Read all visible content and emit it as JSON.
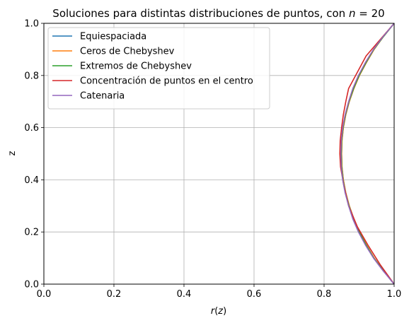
{
  "chart_data": {
    "type": "line",
    "title": "Soluciones para distintas distribuciones de puntos, con n = 20",
    "title_prefix": "Soluciones para distintas distribuciones de puntos, con ",
    "title_var": "n",
    "title_suffix": " = 20",
    "xlabel": "r(z)",
    "xlabel_var": "r",
    "xlabel_open": "(",
    "xlabel_arg": "z",
    "xlabel_close": ")",
    "ylabel": "z",
    "xlim": [
      0,
      1
    ],
    "ylim": [
      0,
      1
    ],
    "xticks": [
      "0.0",
      "0.2",
      "0.4",
      "0.6",
      "0.8",
      "1.0"
    ],
    "yticks": [
      "0.0",
      "0.2",
      "0.4",
      "0.6",
      "0.8",
      "1.0"
    ],
    "grid": true,
    "legend_position": "top-left",
    "series": [
      {
        "name": "Equiespaciada",
        "color": "#1f77b4",
        "points": [
          [
            1.0,
            0.0
          ],
          [
            0.97,
            0.05
          ],
          [
            0.942,
            0.1
          ],
          [
            0.92,
            0.15
          ],
          [
            0.9,
            0.2
          ],
          [
            0.885,
            0.25
          ],
          [
            0.872,
            0.3
          ],
          [
            0.862,
            0.35
          ],
          [
            0.855,
            0.4
          ],
          [
            0.851,
            0.45
          ],
          [
            0.85,
            0.5
          ],
          [
            0.851,
            0.55
          ],
          [
            0.855,
            0.6
          ],
          [
            0.862,
            0.65
          ],
          [
            0.872,
            0.7
          ],
          [
            0.885,
            0.75
          ],
          [
            0.9,
            0.8
          ],
          [
            0.92,
            0.85
          ],
          [
            0.942,
            0.9
          ],
          [
            0.97,
            0.95
          ],
          [
            1.0,
            1.0
          ]
        ]
      },
      {
        "name": "Ceros de Chebyshev",
        "color": "#ff7f0e",
        "points": [
          [
            1.0,
            0.0
          ],
          [
            0.97,
            0.05
          ],
          [
            0.943,
            0.1
          ],
          [
            0.921,
            0.15
          ],
          [
            0.901,
            0.2
          ],
          [
            0.885,
            0.25
          ],
          [
            0.872,
            0.3
          ],
          [
            0.862,
            0.35
          ],
          [
            0.855,
            0.4
          ],
          [
            0.851,
            0.45
          ],
          [
            0.85,
            0.5
          ],
          [
            0.851,
            0.55
          ],
          [
            0.855,
            0.6
          ],
          [
            0.862,
            0.65
          ],
          [
            0.872,
            0.7
          ],
          [
            0.885,
            0.75
          ],
          [
            0.901,
            0.8
          ],
          [
            0.921,
            0.85
          ],
          [
            0.943,
            0.9
          ],
          [
            0.97,
            0.95
          ],
          [
            1.0,
            1.0
          ]
        ]
      },
      {
        "name": "Extremos de Chebyshev",
        "color": "#2ca02c",
        "points": [
          [
            1.0,
            0.0
          ],
          [
            0.97,
            0.05
          ],
          [
            0.942,
            0.1
          ],
          [
            0.92,
            0.15
          ],
          [
            0.9,
            0.2
          ],
          [
            0.884,
            0.25
          ],
          [
            0.871,
            0.3
          ],
          [
            0.861,
            0.35
          ],
          [
            0.854,
            0.4
          ],
          [
            0.85,
            0.45
          ],
          [
            0.849,
            0.5
          ],
          [
            0.85,
            0.55
          ],
          [
            0.854,
            0.6
          ],
          [
            0.861,
            0.65
          ],
          [
            0.871,
            0.7
          ],
          [
            0.884,
            0.75
          ],
          [
            0.9,
            0.8
          ],
          [
            0.92,
            0.85
          ],
          [
            0.942,
            0.9
          ],
          [
            0.97,
            0.95
          ],
          [
            1.0,
            1.0
          ]
        ]
      },
      {
        "name": "Concentración de puntos en el centro",
        "color": "#d62728",
        "points": [
          [
            1.0,
            0.0
          ],
          [
            0.96,
            0.075
          ],
          [
            0.925,
            0.15
          ],
          [
            0.895,
            0.22
          ],
          [
            0.87,
            0.3
          ],
          [
            0.856,
            0.38
          ],
          [
            0.847,
            0.45
          ],
          [
            0.845,
            0.5
          ],
          [
            0.846,
            0.55
          ],
          [
            0.85,
            0.6
          ],
          [
            0.855,
            0.65
          ],
          [
            0.862,
            0.7
          ],
          [
            0.87,
            0.75
          ],
          [
            0.92,
            0.875
          ],
          [
            1.0,
            1.0
          ]
        ]
      },
      {
        "name": "Catenaria",
        "color": "#9467bd",
        "points": [
          [
            1.0,
            0.0
          ],
          [
            0.969,
            0.05
          ],
          [
            0.941,
            0.1
          ],
          [
            0.918,
            0.15
          ],
          [
            0.898,
            0.2
          ],
          [
            0.882,
            0.25
          ],
          [
            0.87,
            0.3
          ],
          [
            0.86,
            0.35
          ],
          [
            0.853,
            0.4
          ],
          [
            0.849,
            0.45
          ],
          [
            0.848,
            0.5
          ],
          [
            0.849,
            0.55
          ],
          [
            0.853,
            0.6
          ],
          [
            0.86,
            0.65
          ],
          [
            0.87,
            0.7
          ],
          [
            0.882,
            0.75
          ],
          [
            0.898,
            0.8
          ],
          [
            0.918,
            0.85
          ],
          [
            0.941,
            0.9
          ],
          [
            0.969,
            0.95
          ],
          [
            1.0,
            1.0
          ]
        ]
      }
    ]
  }
}
